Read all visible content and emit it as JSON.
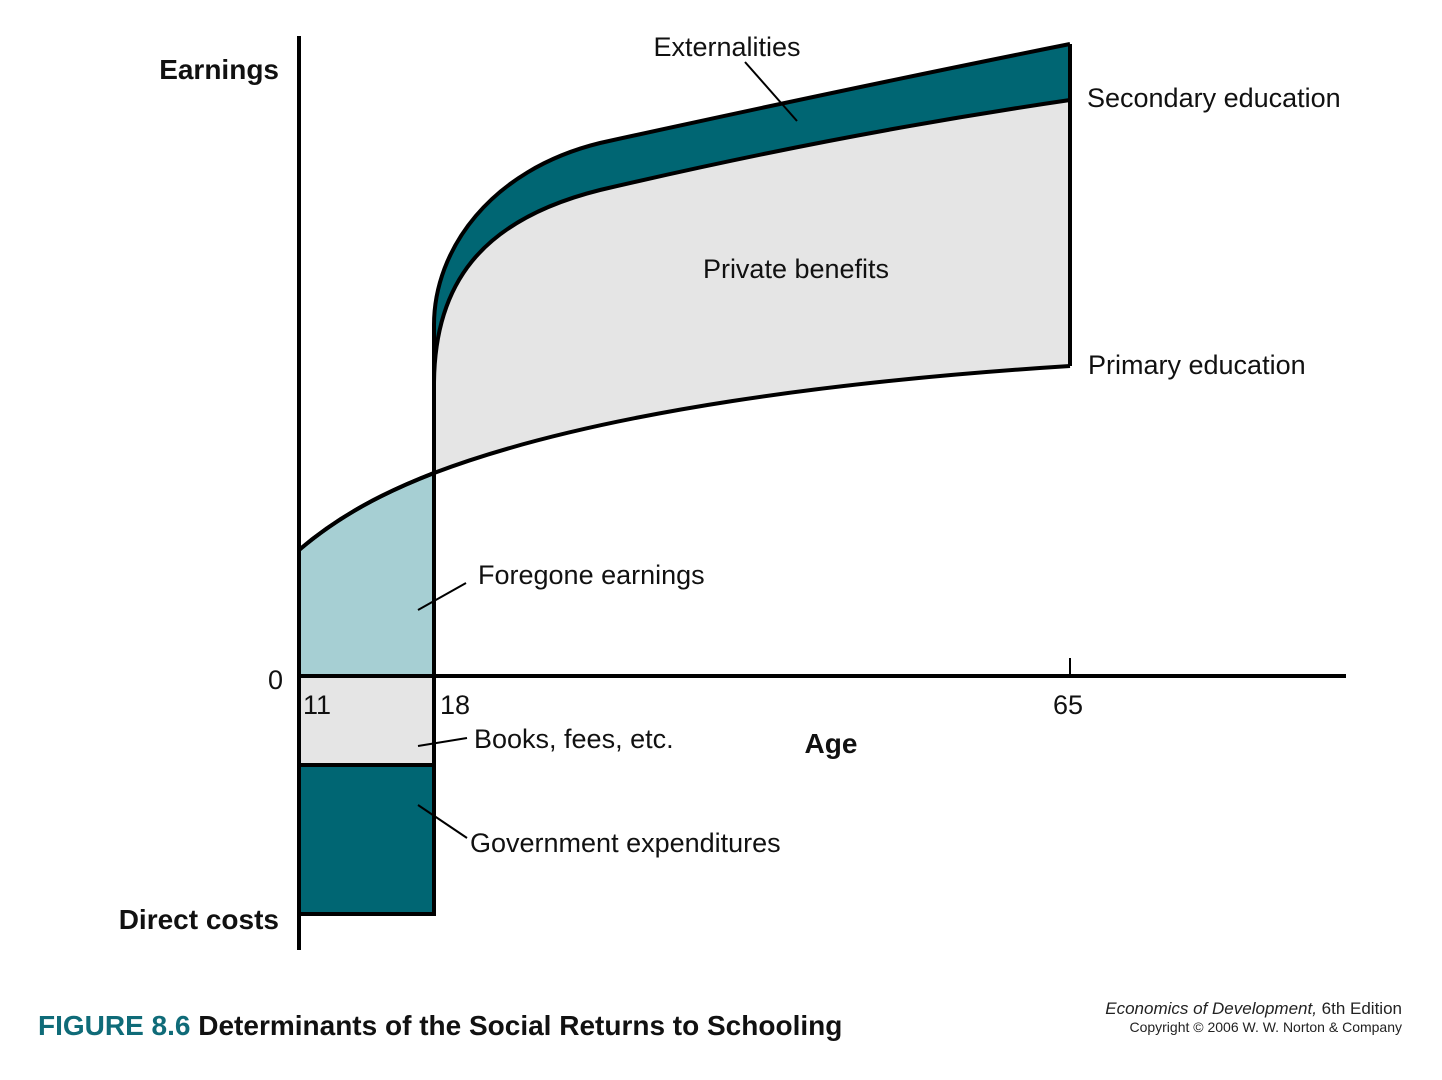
{
  "diagram": {
    "y_axis_label_top": "Earnings",
    "y_axis_label_bottom": "Direct costs",
    "x_axis_label": "Age",
    "origin_label": "0",
    "x_ticks": [
      "11",
      "18",
      "65"
    ],
    "curves": {
      "secondary": "Secondary education",
      "primary": "Primary education"
    },
    "regions": {
      "externalities": "Externalities",
      "private_benefits": "Private benefits",
      "foregone_earnings": "Foregone earnings",
      "books_fees": "Books, fees, etc.",
      "government": "Government expenditures"
    },
    "colors": {
      "dark_teal": "#006673",
      "light_teal": "#a6cfd3",
      "light_gray": "#e5e5e5",
      "outline": "#000000",
      "figure_number": "#0f6b78"
    }
  },
  "caption": {
    "figure_number": "FIGURE 8.6",
    "title": "Determinants of the Social Returns to Schooling"
  },
  "credits": {
    "book_title": "Economics of Development,",
    "edition": "6th Edition",
    "copyright": "Copyright © 2006 W. W. Norton & Company"
  }
}
